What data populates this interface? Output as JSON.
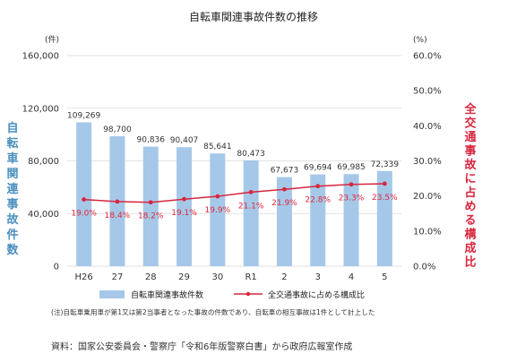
{
  "chart_data": {
    "type": "bar",
    "title": "自転車関連事故件数の推移",
    "categories": [
      "H26",
      "27",
      "28",
      "29",
      "30",
      "R1",
      "2",
      "3",
      "4",
      "5"
    ],
    "series": [
      {
        "name": "自転車関連事故件数",
        "type": "bar",
        "axis": "left",
        "values": [
          109269,
          98700,
          90836,
          90407,
          85641,
          80473,
          67673,
          69694,
          69985,
          72339
        ],
        "labels": [
          "109,269",
          "98,700",
          "90,836",
          "90,407",
          "85,641",
          "80,473",
          "67,673",
          "69,694",
          "69,985",
          "72,339"
        ]
      },
      {
        "name": "全交通事故に占める構成比",
        "type": "line",
        "axis": "right",
        "values": [
          19.0,
          18.4,
          18.2,
          19.1,
          19.9,
          21.1,
          21.9,
          22.8,
          23.3,
          23.5
        ],
        "labels": [
          "19.0%",
          "18.4%",
          "18.2%",
          "19.1%",
          "19.9%",
          "21.1%",
          "21.9%",
          "22.8%",
          "23.3%",
          "23.5%"
        ]
      }
    ],
    "y_left": {
      "label": "自転車関連事故件数",
      "unit": "(件)",
      "ylim": [
        0,
        160000
      ],
      "ticks": [
        0,
        40000,
        80000,
        120000,
        160000
      ],
      "tick_labels": [
        "0",
        "40,000",
        "80,000",
        "120,000",
        "160,000"
      ]
    },
    "y_right": {
      "label": "全交通事故に占める構成比",
      "unit": "(%)",
      "ylim": [
        0,
        60
      ],
      "ticks": [
        0,
        10,
        20,
        30,
        40,
        50,
        60
      ],
      "tick_labels": [
        "0.0%",
        "10.0%",
        "20.0%",
        "30.0%",
        "40.0%",
        "50.0%",
        "60.0%"
      ]
    },
    "grid": true,
    "legend_position": "bottom",
    "note": "(注)自転車乗用車が第1又は第2当事者となった事故の件数であり、自転車の相互事故は1件として計上した",
    "source": "資料：国家公安委員会・警察庁「令和6年版警察白書」から政府広報室作成",
    "colors": {
      "bar": "#a6c8e8",
      "bar_label": "#333333",
      "line": "#d7263d",
      "line_label": "#e0283b",
      "left_axis_label": "#4a8fbf",
      "right_axis_label": "#d7263d",
      "grid": "#d9d9d9"
    }
  }
}
